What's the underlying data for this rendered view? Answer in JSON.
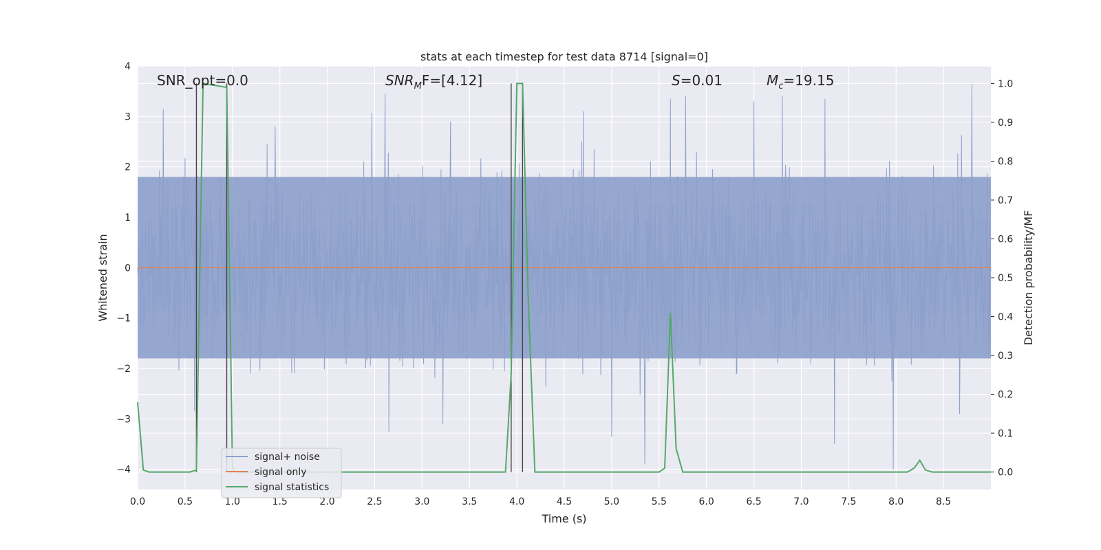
{
  "chart_data": {
    "type": "line",
    "title": "stats at each timestep for test data 8714 [signal=0]",
    "xlabel": "Time (s)",
    "ylabel": "Whitened strain",
    "ylabel_right": "Detection probability/MF",
    "xlim": [
      0.0,
      9.0
    ],
    "ylim": [
      -4.4,
      4.0
    ],
    "ylim_right": [
      -0.045,
      1.045
    ],
    "xticks": [
      "0.0",
      "0.5",
      "1.0",
      "1.5",
      "2.0",
      "2.5",
      "3.0",
      "3.5",
      "4.0",
      "4.5",
      "5.0",
      "5.5",
      "6.0",
      "6.5",
      "7.0",
      "7.5",
      "8.0",
      "8.5"
    ],
    "yticks_left": [
      "4",
      "3",
      "2",
      "1",
      "0",
      "−1",
      "−2",
      "−3",
      "−4"
    ],
    "yticks_right": [
      "1.0",
      "0.9",
      "0.8",
      "0.7",
      "0.6",
      "0.5",
      "0.4",
      "0.3",
      "0.2",
      "0.1",
      "0.0"
    ],
    "grid": true,
    "legend": {
      "placement": "lower-left",
      "entries": [
        {
          "label": "signal+ noise",
          "color": "#8da0cb"
        },
        {
          "label": "signal only",
          "color": "#dd8452"
        },
        {
          "label": "signal statistics",
          "color": "#55a868"
        }
      ]
    },
    "annotations": {
      "snr_opt": "SNR_opt=0.0",
      "snr_mf_main": "SNR",
      "snr_mf_sub": "M",
      "snr_mf_rest": "F=[4.12]",
      "s_main": "S",
      "s_rest": "=0.01",
      "mc_main": "M",
      "mc_sub": "c",
      "mc_rest": "=19.15"
    },
    "series": [
      {
        "name": "signal+ noise",
        "color": "#8da0cb",
        "description_only": "dense whitened noise trace",
        "x_range": [
          0.0,
          9.0
        ],
        "band": [
          -1.8,
          1.8
        ],
        "peaks": [
          {
            "x": 0.27,
            "y": 3.15
          },
          {
            "x": 2.61,
            "y": 3.45
          },
          {
            "x": 5.62,
            "y": 3.35
          },
          {
            "x": 5.78,
            "y": 3.4
          },
          {
            "x": 6.5,
            "y": 3.3
          },
          {
            "x": 6.8,
            "y": 3.4
          },
          {
            "x": 7.25,
            "y": 3.35
          },
          {
            "x": 8.8,
            "y": 3.65
          },
          {
            "x": 1.45,
            "y": 2.8
          },
          {
            "x": 3.3,
            "y": 2.9
          },
          {
            "x": 4.7,
            "y": 3.1
          }
        ],
        "troughs": [
          {
            "x": 0.6,
            "y": -2.85
          },
          {
            "x": 2.65,
            "y": -3.25
          },
          {
            "x": 3.22,
            "y": -3.1
          },
          {
            "x": 5.0,
            "y": -3.35
          },
          {
            "x": 5.35,
            "y": -3.9
          },
          {
            "x": 7.35,
            "y": -3.5
          },
          {
            "x": 7.97,
            "y": -4.0
          },
          {
            "x": 8.67,
            "y": -2.9
          }
        ]
      },
      {
        "name": "signal only",
        "color": "#dd8452",
        "x": [
          0.0,
          9.0
        ],
        "y": [
          0.0,
          0.0
        ]
      },
      {
        "name": "signal statistics",
        "color": "#55a868",
        "axis": "right",
        "x": [
          0.0,
          0.06,
          0.12,
          0.55,
          0.62,
          0.69,
          0.94,
          1.0,
          1.03,
          3.88,
          3.94,
          4.0,
          4.06,
          4.12,
          4.19,
          5.5,
          5.56,
          5.62,
          5.68,
          5.75,
          8.12,
          8.19,
          8.25,
          8.31,
          8.38,
          9.0
        ],
        "y": [
          0.18,
          0.005,
          0.0,
          0.0,
          0.005,
          1.0,
          0.99,
          0.01,
          0.0,
          0.0,
          0.25,
          1.0,
          1.0,
          0.45,
          0.0,
          0.0,
          0.01,
          0.41,
          0.06,
          0.0,
          0.0,
          0.01,
          0.03,
          0.005,
          0.0,
          0.0
        ]
      }
    ],
    "vertical_lines": {
      "color": "#444444",
      "x": [
        0.62,
        0.94,
        3.94,
        4.06
      ],
      "y_range": [
        0.0,
        1.0
      ]
    }
  }
}
